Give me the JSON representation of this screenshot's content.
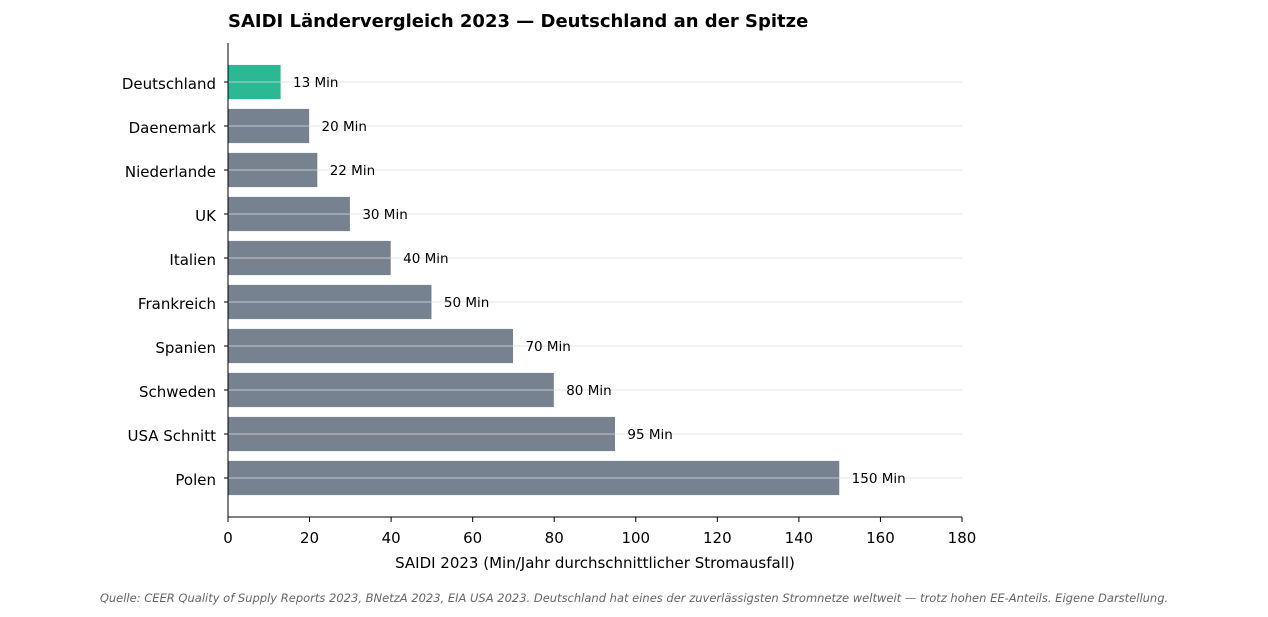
{
  "chart_data": {
    "type": "bar",
    "orientation": "horizontal",
    "title": "SAIDI Ländervergleich 2023 — Deutschland an der Spitze",
    "xlabel": "SAIDI 2023 (Min/Jahr durchschnittlicher Stromausfall)",
    "ylabel": "",
    "xlim": [
      0,
      180
    ],
    "xticks": [
      0,
      20,
      40,
      60,
      80,
      100,
      120,
      140,
      160,
      180
    ],
    "grid": "horizontal",
    "categories": [
      "Deutschland",
      "Daenemark",
      "Niederlande",
      "UK",
      "Italien",
      "Frankreich",
      "Spanien",
      "Schweden",
      "USA Schnitt",
      "Polen"
    ],
    "values": [
      13,
      20,
      22,
      30,
      40,
      50,
      70,
      80,
      95,
      150
    ],
    "data_labels": [
      "13 Min",
      "20 Min",
      "22 Min",
      "30 Min",
      "40 Min",
      "50 Min",
      "70 Min",
      "80 Min",
      "95 Min",
      "150 Min"
    ],
    "bar_colors": [
      "#2bb893",
      "#76828f",
      "#76828f",
      "#76828f",
      "#76828f",
      "#76828f",
      "#76828f",
      "#76828f",
      "#76828f",
      "#76828f"
    ],
    "highlight_color": "#2bb893",
    "default_color": "#76828f"
  },
  "source_note": "Quelle: CEER Quality of Supply Reports 2023, BNetzA 2023, EIA USA 2023. Deutschland hat eines der zuverlässigsten Stromnetze weltweit — trotz hohen EE-Anteils. Eigene Darstellung."
}
